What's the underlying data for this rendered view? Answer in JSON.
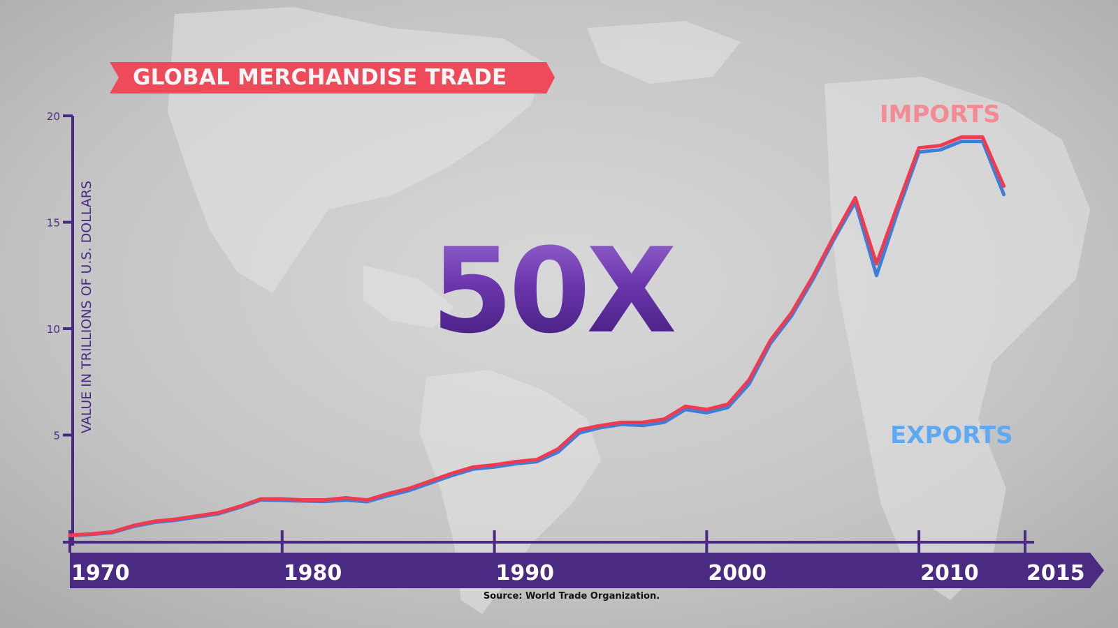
{
  "header": {
    "title": "GLOBAL MERCHANDISE TRADE"
  },
  "callout": {
    "text": "50X"
  },
  "source": "Source: World Trade Organization.",
  "colors": {
    "banner": "#ee4a5a",
    "axis": "#4b2a83",
    "imports": "#ee3b50",
    "exports": "#3f7ed8",
    "imports_label": "#f28b94",
    "exports_label": "#5ea9f2",
    "background": "#c9c9c9"
  },
  "chart_data": {
    "type": "line",
    "title": "GLOBAL MERCHANDISE TRADE",
    "ylabel": "VALUE IN TRILLIONS OF U.S. DOLLARS",
    "xlabel": "",
    "xlim": [
      1970,
      2015
    ],
    "ylim": [
      0,
      20
    ],
    "x_ticks": [
      1970,
      1980,
      1990,
      2000,
      2010,
      2015
    ],
    "x_tick_labels": [
      "1970",
      "1980",
      "1990",
      "2000",
      "2010",
      "2015"
    ],
    "y_ticks": [
      5,
      10,
      15,
      20
    ],
    "y_tick_labels": [
      "5",
      "10",
      "15",
      "20"
    ],
    "grid": false,
    "legend": "direct labels at right",
    "x": [
      1970,
      1971,
      1972,
      1973,
      1974,
      1975,
      1976,
      1977,
      1978,
      1979,
      1980,
      1981,
      1982,
      1983,
      1984,
      1985,
      1986,
      1987,
      1988,
      1989,
      1990,
      1991,
      1992,
      1993,
      1994,
      1995,
      1996,
      1997,
      1998,
      1999,
      2000,
      2001,
      2002,
      2003,
      2004,
      2005,
      2006,
      2007,
      2008,
      2009,
      2010,
      2011,
      2012,
      2013,
      2014,
      2015
    ],
    "series": [
      {
        "name": "IMPORTS",
        "values": [
          0.3,
          0.35,
          0.45,
          0.75,
          0.95,
          1.05,
          1.2,
          1.35,
          1.65,
          2.0,
          2.0,
          1.95,
          1.95,
          2.05,
          1.95,
          2.25,
          2.5,
          2.85,
          3.2,
          3.5,
          3.6,
          3.75,
          3.85,
          4.35,
          5.25,
          5.45,
          5.6,
          5.6,
          5.75,
          6.35,
          6.2,
          6.45,
          7.6,
          9.45,
          10.75,
          12.45,
          14.35,
          16.15,
          13.05,
          15.8,
          18.5,
          18.6,
          19.0,
          19.0,
          16.7,
          null
        ],
        "color": "#ee3b50"
      },
      {
        "name": "EXPORTS",
        "values": [
          0.28,
          0.33,
          0.42,
          0.7,
          0.9,
          1.0,
          1.15,
          1.3,
          1.6,
          1.95,
          1.93,
          1.9,
          1.88,
          1.95,
          1.87,
          2.15,
          2.4,
          2.75,
          3.1,
          3.4,
          3.5,
          3.65,
          3.75,
          4.2,
          5.1,
          5.35,
          5.5,
          5.45,
          5.6,
          6.2,
          6.05,
          6.3,
          7.4,
          9.3,
          10.6,
          12.3,
          14.2,
          15.95,
          12.5,
          15.5,
          18.3,
          18.4,
          18.8,
          18.8,
          16.3,
          null
        ],
        "color": "#3f7ed8"
      }
    ]
  }
}
